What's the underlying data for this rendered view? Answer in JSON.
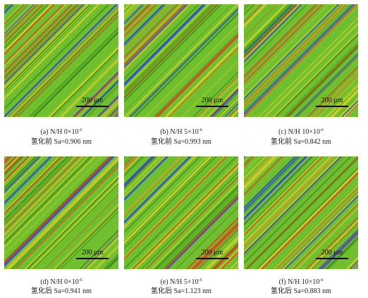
{
  "scale_bar": "200 μm",
  "panels": [
    {
      "label": "(a)",
      "ratio_prefix": "N/H 0×10",
      "exponent": "-6",
      "condition": "氢化前 Sa=0.906 nm"
    },
    {
      "label": "(b)",
      "ratio_prefix": "N/H 5×10",
      "exponent": "-6",
      "condition": "氢化前 Sa=0.993 nm"
    },
    {
      "label": "(c)",
      "ratio_prefix": "N/H 10×10",
      "exponent": "-6",
      "condition": "氢化前 Sa=0.842 nm"
    },
    {
      "label": "(d)",
      "ratio_prefix": "N/H 0×10",
      "exponent": "-6",
      "condition": "氢化后 Sa=0.941 nm"
    },
    {
      "label": "(e)",
      "ratio_prefix": "N/H 5×10",
      "exponent": "-6",
      "condition": "氢化后 Sa=1.123 nm"
    },
    {
      "label": "(f)",
      "ratio_prefix": "N/H 10×10",
      "exponent": "-6",
      "condition": "氢化后 Sa=0.883 nm"
    }
  ],
  "colors": {
    "base": "#6fbf2e",
    "stripe_yellow": "#d9d02a",
    "stripe_red": "#e0401e",
    "stripe_blue": "#2a4fd0",
    "stripe_dark_green": "#3f8f1e"
  }
}
